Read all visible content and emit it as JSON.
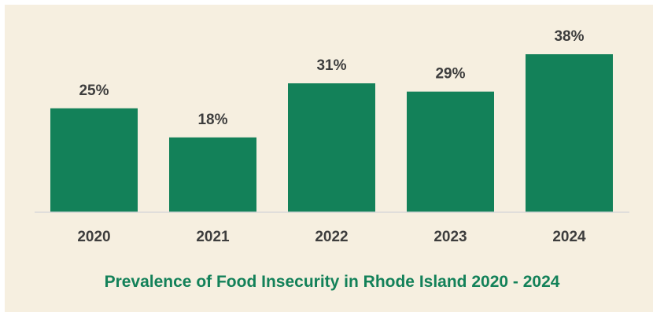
{
  "chart_data": {
    "type": "bar",
    "title": "Prevalence of Food Insecurity in Rhode Island 2020 - 2024",
    "xlabel": "",
    "ylabel": "",
    "categories": [
      "2020",
      "2021",
      "2022",
      "2023",
      "2024"
    ],
    "values": [
      25,
      18,
      31,
      29,
      38
    ],
    "data_labels": [
      "25%",
      "18%",
      "31%",
      "29%",
      "38%"
    ],
    "unit": "%",
    "ylim": [
      0,
      38
    ],
    "grid": false,
    "legend": "none",
    "colors": {
      "bar": "#138159",
      "background": "#f6efe0",
      "baseline": "#d9d9d9",
      "label_text": "#3d3d3d",
      "title_text": "#138159"
    }
  }
}
